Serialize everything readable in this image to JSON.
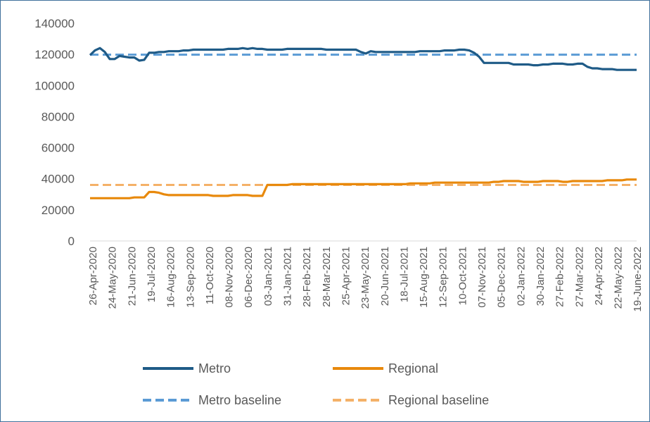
{
  "chart_data": {
    "type": "line",
    "title": "",
    "xlabel": "",
    "ylabel": "",
    "ylim": [
      0,
      140000
    ],
    "yticks": [
      0,
      20000,
      40000,
      60000,
      80000,
      100000,
      120000,
      140000
    ],
    "ytick_labels": [
      "0",
      "20000",
      "40000",
      "60000",
      "80000",
      "100000",
      "120000",
      "140000"
    ],
    "x_tick_labels": [
      "26-Apr-2020",
      "24-May-2020",
      "21-Jun-2020",
      "19-Jul-2020",
      "16-Aug-2020",
      "13-Sep-2020",
      "11-Oct-2020",
      "08-Nov-2020",
      "06-Dec-2020",
      "03-Jan-2021",
      "31-Jan-2021",
      "28-Feb-2021",
      "28-Mar-2021",
      "25-Apr-2021",
      "23-May-2021",
      "20-Jun-2021",
      "18-Jul-2021",
      "15-Aug-2021",
      "12-Sep-2021",
      "10-Oct-2021",
      "07-Nov-2021",
      "05-Dec-2021",
      "02-Jan-2022",
      "30-Jan-2022",
      "27-Feb-2022",
      "27-Mar-2022",
      "24-Apr-2022",
      "22-May-2022",
      "19-June-2022"
    ],
    "grid": false,
    "legend_position": "bottom",
    "series": [
      {
        "name": "Metro",
        "style": "solid",
        "color": "#1f5b87",
        "values": [
          119500,
          122500,
          124000,
          121500,
          117000,
          117000,
          119000,
          118500,
          118000,
          118000,
          116000,
          116500,
          121000,
          121000,
          121500,
          121500,
          122000,
          122000,
          122000,
          122500,
          122500,
          123000,
          123000,
          123000,
          123000,
          123000,
          123000,
          123000,
          123500,
          123500,
          123500,
          124000,
          123500,
          124000,
          123500,
          123500,
          123000,
          123000,
          123000,
          123000,
          123500,
          123500,
          123500,
          123500,
          123500,
          123500,
          123500,
          123500,
          123000,
          123000,
          123000,
          123000,
          123000,
          123000,
          123000,
          121500,
          120500,
          122000,
          121500,
          121500,
          121500,
          121500,
          121500,
          121500,
          121500,
          121500,
          121500,
          122000,
          122000,
          122000,
          122000,
          122000,
          122500,
          122500,
          122500,
          123000,
          123000,
          122500,
          121000,
          118500,
          114500,
          114500,
          114500,
          114500,
          114500,
          114500,
          113500,
          113500,
          113500,
          113500,
          113000,
          113000,
          113500,
          113500,
          114000,
          114000,
          114000,
          113500,
          113500,
          114000,
          114000,
          112000,
          111000,
          111000,
          110500,
          110500,
          110500,
          110000,
          110000,
          110000,
          110000,
          110000
        ]
      },
      {
        "name": "Regional",
        "style": "solid",
        "color": "#e8890c",
        "values": [
          27500,
          27500,
          27500,
          27500,
          27500,
          27500,
          27500,
          27500,
          27500,
          28000,
          28000,
          28000,
          31500,
          31500,
          31000,
          30000,
          29500,
          29500,
          29500,
          29500,
          29500,
          29500,
          29500,
          29500,
          29500,
          29000,
          29000,
          29000,
          29000,
          29500,
          29500,
          29500,
          29500,
          29000,
          29000,
          29000,
          36000,
          36000,
          36000,
          36000,
          36000,
          36500,
          36500,
          36500,
          36500,
          36500,
          36500,
          36500,
          36500,
          36500,
          36500,
          36500,
          36500,
          36500,
          36500,
          36500,
          36500,
          36500,
          36500,
          36500,
          36500,
          36500,
          36500,
          36500,
          36500,
          37000,
          37000,
          37000,
          37000,
          37000,
          37500,
          37500,
          37500,
          37500,
          37500,
          37500,
          37500,
          37500,
          37500,
          37500,
          37500,
          37500,
          38000,
          38000,
          38500,
          38500,
          38500,
          38500,
          38000,
          38000,
          38000,
          38000,
          38500,
          38500,
          38500,
          38500,
          38000,
          38000,
          38500,
          38500,
          38500,
          38500,
          38500,
          38500,
          38500,
          39000,
          39000,
          39000,
          39000,
          39500,
          39500,
          39500
        ]
      },
      {
        "name": "Metro baseline",
        "style": "dashed",
        "color": "#5b9bd5",
        "values_constant": 119800
      },
      {
        "name": "Regional baseline",
        "style": "dashed",
        "color": "#f4b168",
        "values_constant": 36000
      }
    ]
  }
}
